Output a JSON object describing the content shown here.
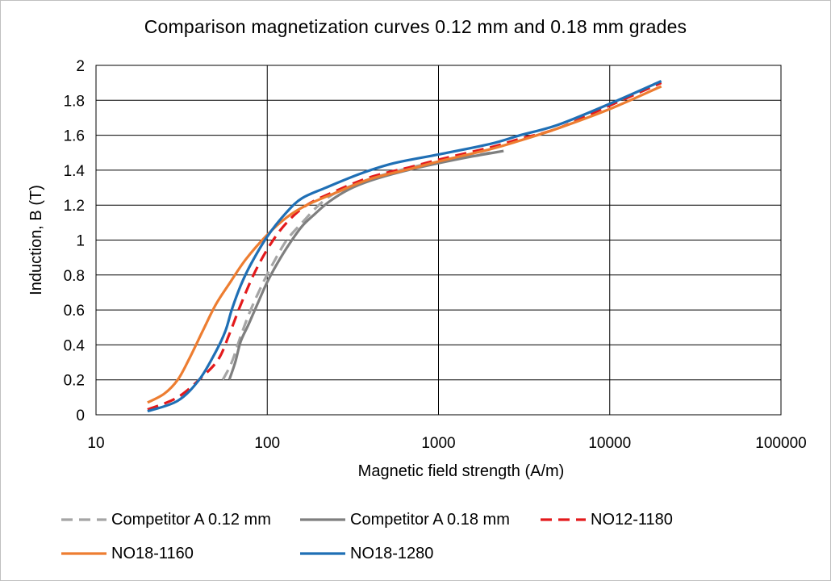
{
  "chart_data": {
    "type": "line",
    "title": "Comparison  magnetization curves 0.12 mm and 0.18 mm grades",
    "xlabel": "Magnetic field strength (A/m)",
    "ylabel": "Induction, B (T)",
    "xscale": "log",
    "xlim": [
      10,
      100000
    ],
    "ylim": [
      0,
      2
    ],
    "x_ticks": [
      "10",
      "100",
      "1000",
      "10000",
      "100000"
    ],
    "y_ticks": [
      "0",
      "0.2",
      "0.4",
      "0.6",
      "0.8",
      "1",
      "1.2",
      "1.4",
      "1.6",
      "1.8",
      "2"
    ],
    "grid": true,
    "legend_position": "bottom",
    "series": [
      {
        "name": "Competitor A 0.12 mm",
        "color": "#a5a5a5",
        "dash": "dashed",
        "points": [
          [
            55,
            0.2
          ],
          [
            62,
            0.3
          ],
          [
            70,
            0.45
          ],
          [
            80,
            0.6
          ],
          [
            95,
            0.76
          ],
          [
            110,
            0.88
          ],
          [
            130,
            1.0
          ],
          [
            160,
            1.1
          ],
          [
            200,
            1.2
          ],
          [
            250,
            1.27
          ],
          [
            350,
            1.33
          ],
          [
            500,
            1.38
          ],
          [
            800,
            1.43
          ],
          [
            1200,
            1.46
          ],
          [
            2000,
            1.5
          ]
        ]
      },
      {
        "name": "Competitor A 0.18 mm",
        "color": "#7f7f7f",
        "dash": "solid",
        "points": [
          [
            60,
            0.2
          ],
          [
            65,
            0.3
          ],
          [
            70,
            0.42
          ],
          [
            78,
            0.52
          ],
          [
            90,
            0.66
          ],
          [
            100,
            0.76
          ],
          [
            115,
            0.87
          ],
          [
            135,
            0.98
          ],
          [
            160,
            1.08
          ],
          [
            190,
            1.15
          ],
          [
            230,
            1.22
          ],
          [
            300,
            1.29
          ],
          [
            400,
            1.34
          ],
          [
            600,
            1.39
          ],
          [
            1000,
            1.44
          ],
          [
            1600,
            1.48
          ],
          [
            2400,
            1.51
          ]
        ]
      },
      {
        "name": "NO12-1180",
        "color": "#e31a1c",
        "dash": "dashed",
        "points": [
          [
            20,
            0.03
          ],
          [
            30,
            0.1
          ],
          [
            42,
            0.22
          ],
          [
            52,
            0.32
          ],
          [
            60,
            0.46
          ],
          [
            70,
            0.63
          ],
          [
            85,
            0.82
          ],
          [
            105,
            0.98
          ],
          [
            130,
            1.1
          ],
          [
            170,
            1.2
          ],
          [
            250,
            1.28
          ],
          [
            400,
            1.36
          ],
          [
            700,
            1.42
          ],
          [
            1000,
            1.46
          ],
          [
            2000,
            1.53
          ],
          [
            3000,
            1.58
          ],
          [
            5000,
            1.64
          ],
          [
            10000,
            1.77
          ],
          [
            20000,
            1.9
          ]
        ]
      },
      {
        "name": "NO18-1160",
        "color": "#ed7d31",
        "dash": "solid",
        "points": [
          [
            20,
            0.07
          ],
          [
            25,
            0.12
          ],
          [
            30,
            0.2
          ],
          [
            35,
            0.32
          ],
          [
            42,
            0.48
          ],
          [
            50,
            0.63
          ],
          [
            60,
            0.75
          ],
          [
            75,
            0.89
          ],
          [
            100,
            1.03
          ],
          [
            130,
            1.13
          ],
          [
            170,
            1.2
          ],
          [
            250,
            1.27
          ],
          [
            400,
            1.35
          ],
          [
            700,
            1.41
          ],
          [
            1000,
            1.45
          ],
          [
            2000,
            1.52
          ],
          [
            3000,
            1.57
          ],
          [
            5000,
            1.64
          ],
          [
            10000,
            1.75
          ],
          [
            20000,
            1.88
          ]
        ]
      },
      {
        "name": "NO18-1280",
        "color": "#1f6fb5",
        "dash": "solid",
        "points": [
          [
            20,
            0.02
          ],
          [
            30,
            0.08
          ],
          [
            40,
            0.2
          ],
          [
            50,
            0.36
          ],
          [
            57,
            0.48
          ],
          [
            62,
            0.6
          ],
          [
            70,
            0.74
          ],
          [
            80,
            0.86
          ],
          [
            100,
            1.02
          ],
          [
            130,
            1.16
          ],
          [
            160,
            1.24
          ],
          [
            220,
            1.3
          ],
          [
            350,
            1.38
          ],
          [
            550,
            1.44
          ],
          [
            1000,
            1.49
          ],
          [
            2000,
            1.55
          ],
          [
            3000,
            1.6
          ],
          [
            5000,
            1.66
          ],
          [
            10000,
            1.78
          ],
          [
            20000,
            1.91
          ]
        ]
      }
    ]
  }
}
